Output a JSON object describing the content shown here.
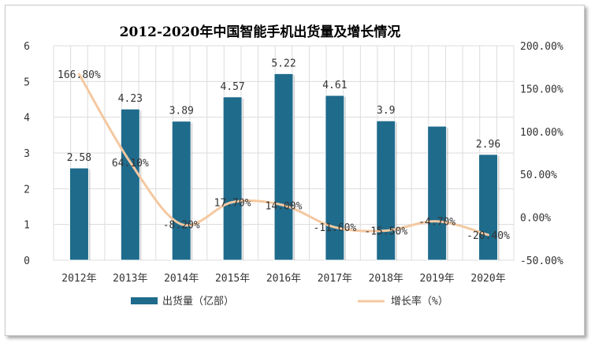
{
  "chart_data": {
    "type": "bar",
    "title": "2012-2020年中国智能手机出货量及增长情况",
    "categories": [
      "2012年",
      "2013年",
      "2014年",
      "2015年",
      "2016年",
      "2017年",
      "2018年",
      "2019年",
      "2020年"
    ],
    "series": [
      {
        "name": "出货量（亿部）",
        "type": "bar",
        "axis": "left",
        "values": [
          2.58,
          4.23,
          3.89,
          4.57,
          5.22,
          4.61,
          3.9,
          3.75,
          2.96
        ],
        "labels": [
          "2.58",
          "4.23",
          "3.89",
          "4.57",
          "5.22",
          "4.61",
          "3.9",
          "",
          "2.96"
        ],
        "color": "#1f6b8c"
      },
      {
        "name": "增长率（%）",
        "type": "line",
        "axis": "right",
        "values": [
          166.8,
          64.1,
          -8.2,
          17.7,
          14.0,
          -11.6,
          -15.5,
          -4.7,
          -20.4
        ],
        "labels": [
          "166.80%",
          "64.10%",
          "-8.20%",
          "17.70%",
          "14.00%",
          "-11.60%",
          "-15.50%",
          "-4.70%",
          "-20.40%"
        ],
        "color": "#f4c8a0"
      }
    ],
    "y_left": {
      "min": 0,
      "max": 6,
      "step": 1,
      "ticks": [
        "0",
        "1",
        "2",
        "3",
        "4",
        "5",
        "6"
      ]
    },
    "y_right": {
      "min": -50,
      "max": 200,
      "step": 50,
      "ticks": [
        "-50.00%",
        "0.00%",
        "50.00%",
        "100.00%",
        "150.00%",
        "200.00%"
      ]
    },
    "grid": true,
    "legend": "bottom"
  }
}
